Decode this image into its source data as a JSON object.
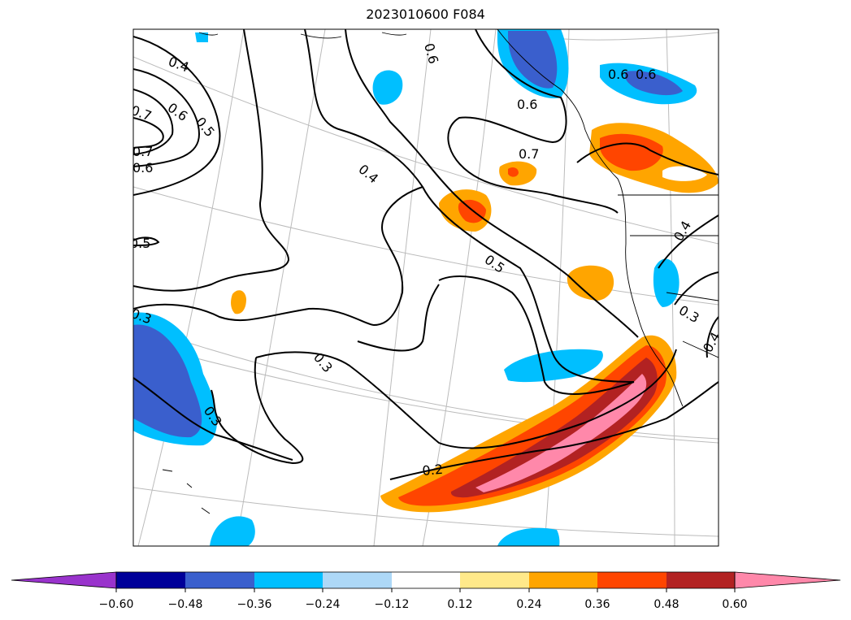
{
  "title": "2023010600 F084",
  "map": {
    "contour_labels": [
      "0.4",
      "0.5",
      "0.6",
      "0.7",
      "0.7",
      "0.6",
      "0.5",
      "0.3",
      "0.3",
      "0.3",
      "0.4",
      "0.5",
      "0.2",
      "0.6",
      "0.6",
      "0.6",
      "0.7",
      "0.6",
      "0.4",
      "0.3",
      "0.4"
    ],
    "colors": {
      "purple": "#9933cc",
      "navy": "#000099",
      "royal": "#3a5fcd",
      "blue": "#00bfff",
      "lightblue": "#add8f7",
      "white": "#ffffff",
      "yellow": "#ffe98a",
      "orange": "#ffa500",
      "redorange": "#ff4500",
      "darkred": "#b22222",
      "pink": "#ff88aa"
    }
  },
  "colorbar": {
    "ticks": [
      "−0.60",
      "−0.48",
      "−0.36",
      "−0.24",
      "−0.12",
      "0.12",
      "0.24",
      "0.36",
      "0.48",
      "0.60"
    ],
    "colors": [
      "#9933cc",
      "#000099",
      "#3a5fcd",
      "#00bfff",
      "#add8f7",
      "#ffffff",
      "#ffe98a",
      "#ffa500",
      "#ff4500",
      "#b22222",
      "#ff88aa"
    ]
  }
}
